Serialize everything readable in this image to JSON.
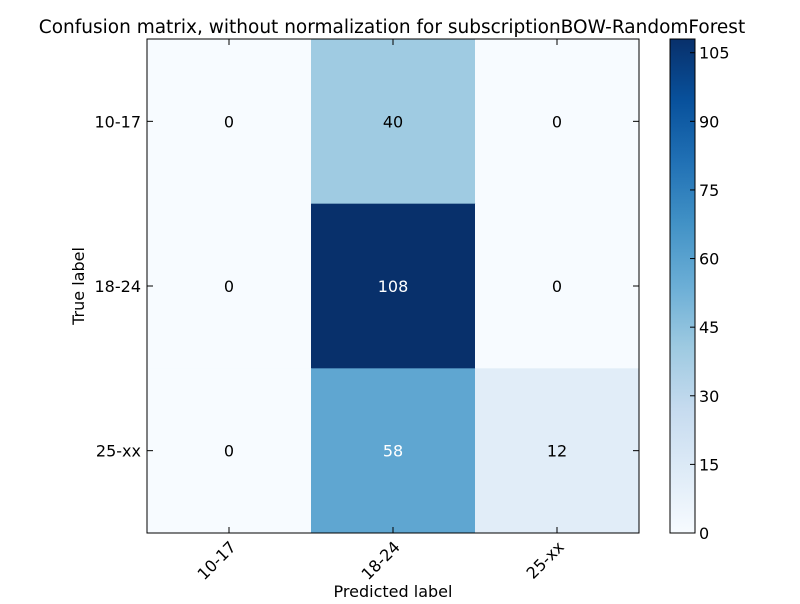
{
  "chart_data": {
    "type": "heatmap",
    "title": "Confusion matrix, without normalization for subscriptionBOW-RandomForest",
    "xlabel": "Predicted label",
    "ylabel": "True label",
    "x_categories": [
      "10-17",
      "18-24",
      "25-xx"
    ],
    "y_categories": [
      "10-17",
      "18-24",
      "25-xx"
    ],
    "values": [
      [
        0,
        40,
        0
      ],
      [
        0,
        108,
        0
      ],
      [
        0,
        58,
        12
      ]
    ],
    "colormap": "Blues",
    "color_range": [
      0,
      108
    ],
    "colorbar_ticks": [
      0,
      15,
      30,
      45,
      60,
      75,
      90,
      105
    ],
    "grid": false,
    "text_color_dark": "#000000",
    "text_color_light": "#ffffff"
  }
}
